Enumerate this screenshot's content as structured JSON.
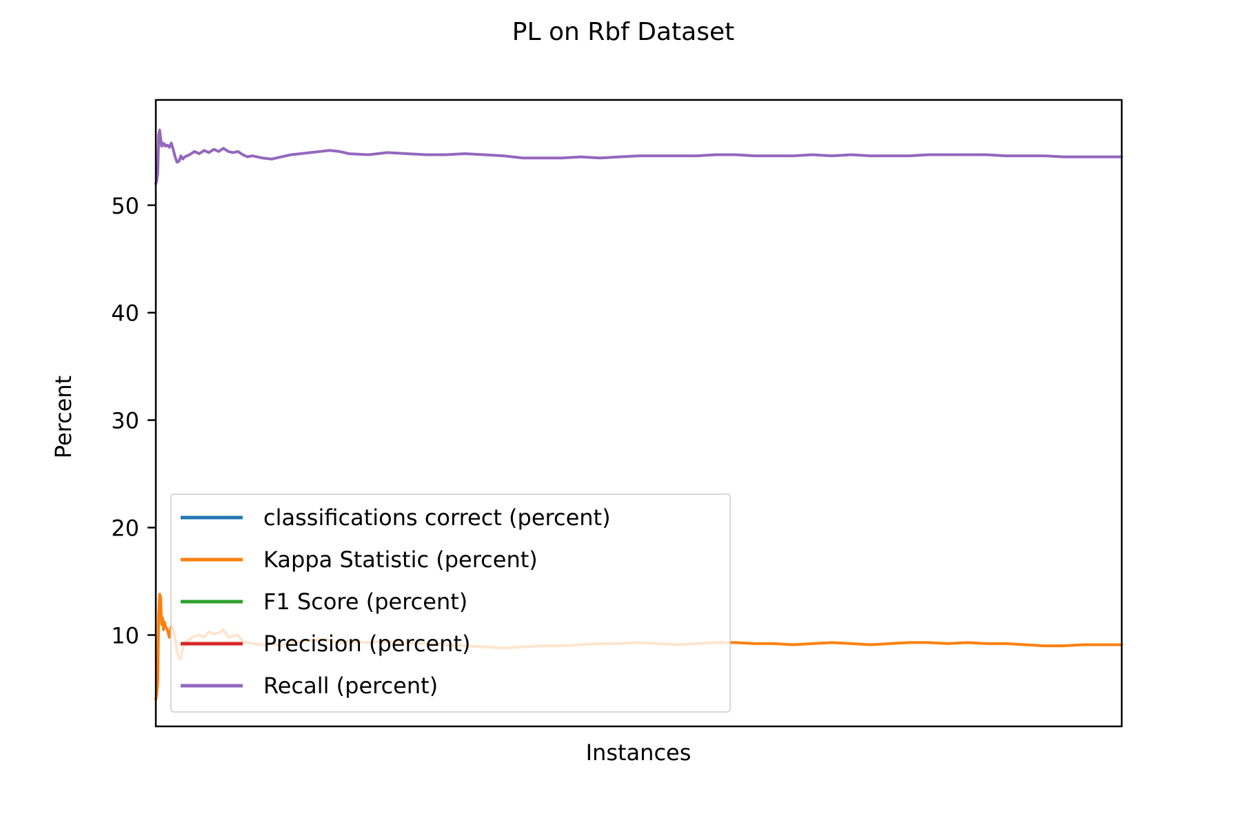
{
  "chart_data": {
    "type": "line",
    "title": "PL on Rbf Dataset",
    "xlabel": "Instances",
    "ylabel": "Percent",
    "ylim": [
      1.5,
      59.8
    ],
    "xlim": [
      0,
      1000
    ],
    "yticks": [
      10,
      20,
      30,
      40,
      50
    ],
    "xticks": [],
    "grid": false,
    "legend_position": "lower-left",
    "series": [
      {
        "name": "classifications correct (percent)",
        "color": "#1f77b4",
        "x": [],
        "y": []
      },
      {
        "name": "Kappa Statistic (percent)",
        "color": "#ff7f0e",
        "x": [
          0,
          1,
          2,
          3,
          4,
          5,
          6,
          7,
          8,
          9,
          10,
          12,
          14,
          16,
          18,
          20,
          22,
          24,
          26,
          28,
          30,
          35,
          40,
          45,
          50,
          55,
          60,
          65,
          70,
          75,
          80,
          85,
          90,
          95,
          100,
          110,
          120,
          130,
          140,
          150,
          160,
          170,
          180,
          190,
          200,
          220,
          240,
          260,
          280,
          300,
          320,
          340,
          360,
          380,
          400,
          420,
          440,
          460,
          480,
          500,
          520,
          540,
          560,
          580,
          600,
          620,
          640,
          660,
          680,
          700,
          720,
          740,
          760,
          780,
          800,
          820,
          840,
          860,
          880,
          900,
          920,
          940,
          960,
          980,
          1000
        ],
        "y": [
          4.0,
          4.5,
          5.5,
          12.0,
          13.8,
          13.5,
          11.0,
          11.6,
          10.5,
          11.2,
          10.8,
          10.5,
          9.8,
          10.8,
          10.6,
          9.6,
          8.5,
          7.8,
          7.8,
          8.8,
          9.3,
          9.6,
          9.9,
          10.0,
          9.8,
          10.3,
          10.1,
          10.2,
          10.5,
          9.8,
          9.9,
          10.0,
          9.4,
          9.3,
          9.2,
          9.1,
          9.2,
          9.0,
          9.3,
          9.4,
          9.5,
          9.6,
          9.5,
          9.3,
          9.4,
          9.3,
          9.4,
          9.3,
          9.2,
          9.1,
          9.0,
          8.9,
          8.8,
          8.9,
          9.0,
          9.0,
          9.1,
          9.2,
          9.2,
          9.3,
          9.2,
          9.1,
          9.2,
          9.3,
          9.3,
          9.2,
          9.2,
          9.1,
          9.2,
          9.3,
          9.2,
          9.1,
          9.2,
          9.3,
          9.3,
          9.2,
          9.3,
          9.2,
          9.2,
          9.1,
          9.0,
          9.0,
          9.1,
          9.1,
          9.1
        ]
      },
      {
        "name": "F1 Score (percent)",
        "color": "#2ca02c",
        "x": [],
        "y": []
      },
      {
        "name": "Precision (percent)",
        "color": "#d62728",
        "x": [],
        "y": []
      },
      {
        "name": "Recall (percent)",
        "color": "#9467bd",
        "x": [
          0,
          1,
          2,
          3,
          4,
          5,
          6,
          7,
          8,
          9,
          10,
          12,
          14,
          16,
          18,
          20,
          22,
          24,
          26,
          28,
          30,
          35,
          40,
          45,
          50,
          55,
          60,
          65,
          70,
          75,
          80,
          85,
          90,
          95,
          100,
          110,
          120,
          130,
          140,
          150,
          160,
          170,
          180,
          190,
          200,
          220,
          240,
          260,
          280,
          300,
          320,
          340,
          360,
          380,
          400,
          420,
          440,
          460,
          480,
          500,
          520,
          540,
          560,
          580,
          600,
          620,
          640,
          660,
          680,
          700,
          720,
          740,
          760,
          780,
          800,
          820,
          840,
          860,
          880,
          900,
          920,
          940,
          960,
          980,
          1000
        ],
        "y": [
          52.0,
          52.3,
          53.0,
          56.5,
          57.0,
          56.2,
          55.5,
          55.8,
          55.6,
          55.7,
          55.5,
          55.6,
          55.4,
          55.8,
          55.2,
          54.5,
          54.0,
          54.1,
          54.6,
          54.3,
          54.5,
          54.7,
          55.0,
          54.8,
          55.1,
          54.9,
          55.2,
          55.0,
          55.3,
          55.0,
          54.9,
          55.0,
          54.7,
          54.5,
          54.6,
          54.4,
          54.3,
          54.5,
          54.7,
          54.8,
          54.9,
          55.0,
          55.1,
          55.0,
          54.8,
          54.7,
          54.9,
          54.8,
          54.7,
          54.7,
          54.8,
          54.7,
          54.6,
          54.4,
          54.4,
          54.4,
          54.5,
          54.4,
          54.5,
          54.6,
          54.6,
          54.6,
          54.6,
          54.7,
          54.7,
          54.6,
          54.6,
          54.6,
          54.7,
          54.6,
          54.7,
          54.6,
          54.6,
          54.6,
          54.7,
          54.7,
          54.7,
          54.7,
          54.6,
          54.6,
          54.6,
          54.5,
          54.5,
          54.5,
          54.5
        ]
      }
    ]
  }
}
